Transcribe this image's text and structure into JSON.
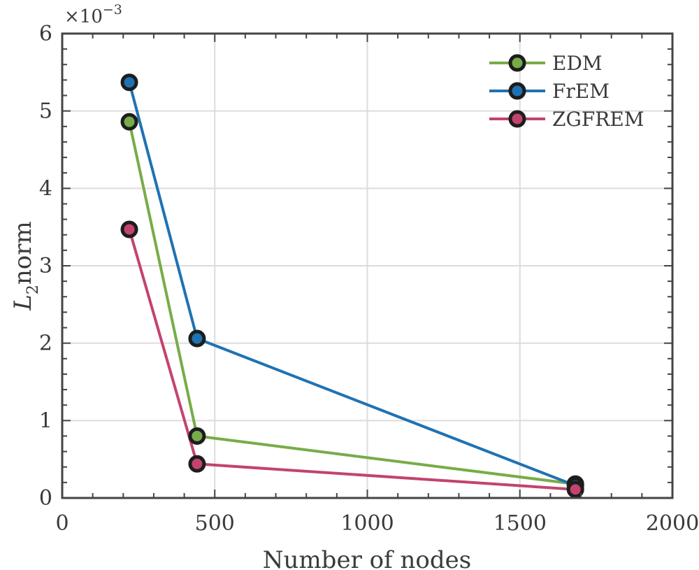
{
  "chart_data": {
    "type": "line",
    "title": "",
    "xlabel": "Number of nodes",
    "ylabel": "norm",
    "ylabel_symbol": "L",
    "ylabel_subscript": "2",
    "y_multiplier": "×10",
    "y_exponent": "−3",
    "xlim": [
      0,
      2000
    ],
    "ylim": [
      0,
      6
    ],
    "xticks": [
      0,
      500,
      1000,
      1500,
      2000
    ],
    "xtick_labels": [
      "0",
      "500",
      "1000",
      "1500",
      "2000"
    ],
    "yticks": [
      0,
      1,
      2,
      3,
      4,
      5,
      6
    ],
    "ytick_labels": [
      "0",
      "1",
      "2",
      "3",
      "4",
      "5",
      "6"
    ],
    "grid": true,
    "legend_position": "top-right",
    "x": [
      220,
      442,
      1682
    ],
    "series": [
      {
        "name": "EDM",
        "color": "#77ac48",
        "values": [
          4.86,
          0.8,
          0.18
        ]
      },
      {
        "name": "FrEM",
        "color": "#1f72b2",
        "values": [
          5.37,
          2.06,
          0.16
        ]
      },
      {
        "name": "ZGFREM",
        "color": "#c2446e",
        "values": [
          3.47,
          0.44,
          0.11
        ]
      }
    ]
  }
}
